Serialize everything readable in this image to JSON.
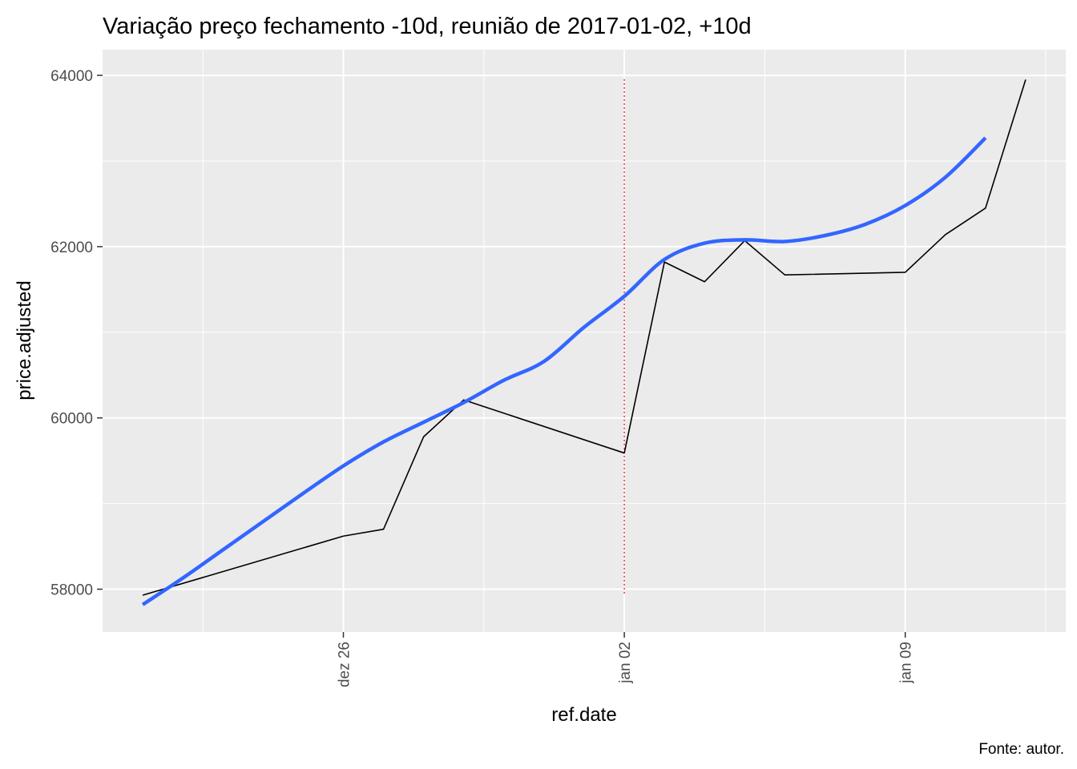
{
  "chart_data": {
    "type": "line",
    "title": "Variação preço fechamento -10d, reunião de 2017-01-02, +10d",
    "xlabel": "ref.date",
    "ylabel": "price.adjusted",
    "caption": "Fonte: autor.",
    "x_range": [
      "2016-12-20",
      "2017-01-13"
    ],
    "ylim": [
      57500,
      64300
    ],
    "x_ticks": [
      {
        "date": "2016-12-26",
        "label": "dez 26"
      },
      {
        "date": "2017-01-02",
        "label": "jan 02"
      },
      {
        "date": "2017-01-09",
        "label": "jan 09"
      }
    ],
    "y_ticks": [
      58000,
      60000,
      62000,
      64000
    ],
    "grid": true,
    "vline": {
      "date": "2017-01-02",
      "color": "#e0303c",
      "style": "dotted",
      "y_range": [
        57950,
        63980
      ]
    },
    "series": [
      {
        "color": "#000000",
        "points": [
          {
            "x": "2016-12-21",
            "y": 57930
          },
          {
            "x": "2016-12-26",
            "y": 58620
          },
          {
            "x": "2016-12-27",
            "y": 58700
          },
          {
            "x": "2016-12-28",
            "y": 59780
          },
          {
            "x": "2016-12-29",
            "y": 60210
          },
          {
            "x": "2017-01-02",
            "y": 59590
          },
          {
            "x": "2017-01-03",
            "y": 61820
          },
          {
            "x": "2017-01-04",
            "y": 61590
          },
          {
            "x": "2017-01-05",
            "y": 62070
          },
          {
            "x": "2017-01-06",
            "y": 61670
          },
          {
            "x": "2017-01-09",
            "y": 61700
          },
          {
            "x": "2017-01-10",
            "y": 62140
          },
          {
            "x": "2017-01-11",
            "y": 62450
          },
          {
            "x": "2017-01-12",
            "y": 63950
          }
        ]
      },
      {
        "color": "#3366ff",
        "smooth": true,
        "points": [
          {
            "x": "2016-12-21",
            "y": 57820
          },
          {
            "x": "2016-12-22",
            "y": 58130
          },
          {
            "x": "2016-12-23",
            "y": 58460
          },
          {
            "x": "2016-12-24",
            "y": 58790
          },
          {
            "x": "2016-12-25",
            "y": 59120
          },
          {
            "x": "2016-12-26",
            "y": 59440
          },
          {
            "x": "2016-12-27",
            "y": 59720
          },
          {
            "x": "2016-12-28",
            "y": 59950
          },
          {
            "x": "2016-12-29",
            "y": 60180
          },
          {
            "x": "2016-12-30",
            "y": 60440
          },
          {
            "x": "2016-12-31",
            "y": 60660
          },
          {
            "x": "2017-01-01",
            "y": 61060
          },
          {
            "x": "2017-01-02",
            "y": 61420
          },
          {
            "x": "2017-01-03",
            "y": 61850
          },
          {
            "x": "2017-01-04",
            "y": 62040
          },
          {
            "x": "2017-01-05",
            "y": 62080
          },
          {
            "x": "2017-01-06",
            "y": 62060
          },
          {
            "x": "2017-01-07",
            "y": 62130
          },
          {
            "x": "2017-01-08",
            "y": 62260
          },
          {
            "x": "2017-01-09",
            "y": 62480
          },
          {
            "x": "2017-01-10",
            "y": 62810
          },
          {
            "x": "2017-01-11",
            "y": 63270
          }
        ]
      }
    ]
  }
}
